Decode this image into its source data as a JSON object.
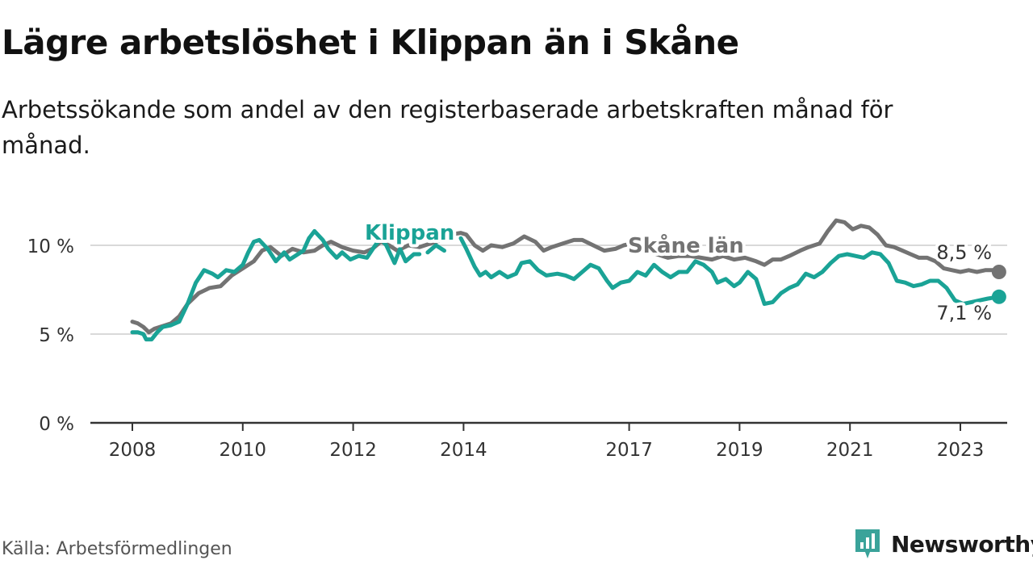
{
  "title": "Lägre arbetslöshet i Klippan än i Skåne",
  "subtitle": "Arbetssökande som andel av den registerbaserade arbetskraften månad för månad.",
  "source": "Källa: Arbetsförmedlingen",
  "brand": {
    "name": "Newsworthy",
    "icon": "newsworthy-logo-icon",
    "color": "#3aa39a"
  },
  "colors": {
    "klippan": "#1aa396",
    "skane": "#737373",
    "grid": "#d9d9d9",
    "axis": "#333333"
  },
  "chart_data": {
    "type": "line",
    "title": "Lägre arbetslöshet i Klippan än i Skåne",
    "xlabel": "",
    "ylabel": "",
    "xlim": [
      2007.85,
      2023.8
    ],
    "ylim": [
      0,
      11.5
    ],
    "x_ticks": [
      2008,
      2010,
      2012,
      2014,
      2017,
      2019,
      2021,
      2023
    ],
    "y_ticks": [
      0,
      5,
      10
    ],
    "y_tick_labels": [
      "0 %",
      "5 %",
      "10 %"
    ],
    "grid": true,
    "series": [
      {
        "name": "Skåne län",
        "label": "Skåne län",
        "color": "#737373",
        "end_label": "8,5 %",
        "end_value": 8.5,
        "points": [
          [
            2008.0,
            5.7
          ],
          [
            2008.1,
            5.6
          ],
          [
            2008.2,
            5.4
          ],
          [
            2008.3,
            5.1
          ],
          [
            2008.4,
            5.3
          ],
          [
            2008.6,
            5.5
          ],
          [
            2008.7,
            5.6
          ],
          [
            2008.85,
            6.0
          ],
          [
            2009.0,
            6.7
          ],
          [
            2009.2,
            7.3
          ],
          [
            2009.4,
            7.6
          ],
          [
            2009.6,
            7.7
          ],
          [
            2009.8,
            8.3
          ],
          [
            2010.0,
            8.7
          ],
          [
            2010.2,
            9.1
          ],
          [
            2010.35,
            9.7
          ],
          [
            2010.5,
            9.9
          ],
          [
            2010.7,
            9.4
          ],
          [
            2010.9,
            9.8
          ],
          [
            2011.1,
            9.6
          ],
          [
            2011.3,
            9.7
          ],
          [
            2011.45,
            10.0
          ],
          [
            2011.6,
            10.2
          ],
          [
            2011.8,
            9.9
          ],
          [
            2012.0,
            9.7
          ],
          [
            2012.2,
            9.6
          ],
          [
            2012.35,
            9.8
          ],
          [
            2012.5,
            10.2
          ],
          [
            2012.65,
            10.0
          ],
          [
            2012.8,
            9.7
          ],
          [
            2013.0,
            10.0
          ],
          [
            2013.2,
            9.9
          ],
          [
            2013.4,
            10.1
          ],
          [
            2013.6,
            10.3
          ],
          [
            2013.75,
            10.6
          ],
          [
            2013.95,
            10.7
          ],
          [
            2014.05,
            10.6
          ],
          [
            2014.2,
            10.0
          ],
          [
            2014.35,
            9.7
          ],
          [
            2014.5,
            10.0
          ],
          [
            2014.7,
            9.9
          ],
          [
            2014.9,
            10.1
          ],
          [
            2015.1,
            10.5
          ],
          [
            2015.3,
            10.2
          ],
          [
            2015.45,
            9.7
          ],
          [
            2015.6,
            9.9
          ],
          [
            2015.8,
            10.1
          ],
          [
            2016.0,
            10.3
          ],
          [
            2016.15,
            10.3
          ],
          [
            2016.35,
            10.0
          ],
          [
            2016.55,
            9.7
          ],
          [
            2016.75,
            9.8
          ],
          [
            2016.9,
            10.0
          ],
          [
            2017.05,
            10.1
          ],
          [
            2017.3,
            9.7
          ],
          [
            2017.5,
            9.5
          ],
          [
            2017.7,
            9.3
          ],
          [
            2017.9,
            9.4
          ],
          [
            2018.1,
            9.4
          ],
          [
            2018.3,
            9.3
          ],
          [
            2018.5,
            9.2
          ],
          [
            2018.7,
            9.4
          ],
          [
            2018.9,
            9.2
          ],
          [
            2019.1,
            9.3
          ],
          [
            2019.3,
            9.1
          ],
          [
            2019.45,
            8.9
          ],
          [
            2019.6,
            9.2
          ],
          [
            2019.75,
            9.2
          ],
          [
            2019.9,
            9.4
          ],
          [
            2020.1,
            9.7
          ],
          [
            2020.25,
            9.9
          ],
          [
            2020.45,
            10.1
          ],
          [
            2020.6,
            10.8
          ],
          [
            2020.75,
            11.4
          ],
          [
            2020.9,
            11.3
          ],
          [
            2021.05,
            10.9
          ],
          [
            2021.2,
            11.1
          ],
          [
            2021.35,
            11.0
          ],
          [
            2021.5,
            10.6
          ],
          [
            2021.65,
            10.0
          ],
          [
            2021.8,
            9.9
          ],
          [
            2021.95,
            9.7
          ],
          [
            2022.1,
            9.5
          ],
          [
            2022.25,
            9.3
          ],
          [
            2022.4,
            9.3
          ],
          [
            2022.55,
            9.1
          ],
          [
            2022.7,
            8.7
          ],
          [
            2022.85,
            8.6
          ],
          [
            2023.0,
            8.5
          ],
          [
            2023.15,
            8.6
          ],
          [
            2023.3,
            8.5
          ],
          [
            2023.45,
            8.6
          ],
          [
            2023.6,
            8.6
          ],
          [
            2023.7,
            8.5
          ]
        ]
      },
      {
        "name": "Klippan",
        "label": "Klippan",
        "color": "#1aa396",
        "end_label": "7,1 %",
        "end_value": 7.1,
        "segments": [
          [
            [
              2008.0,
              5.1
            ],
            [
              2008.1,
              5.1
            ],
            [
              2008.2,
              5.0
            ],
            [
              2008.25,
              4.7
            ],
            [
              2008.35,
              4.7
            ],
            [
              2008.45,
              5.1
            ],
            [
              2008.55,
              5.4
            ],
            [
              2008.7,
              5.5
            ],
            [
              2008.85,
              5.7
            ],
            [
              2009.0,
              6.7
            ],
            [
              2009.15,
              7.9
            ],
            [
              2009.3,
              8.6
            ],
            [
              2009.45,
              8.4
            ],
            [
              2009.55,
              8.2
            ],
            [
              2009.7,
              8.6
            ],
            [
              2009.85,
              8.5
            ],
            [
              2010.0,
              8.9
            ],
            [
              2010.1,
              9.6
            ],
            [
              2010.2,
              10.2
            ],
            [
              2010.3,
              10.3
            ],
            [
              2010.45,
              9.8
            ],
            [
              2010.6,
              9.1
            ],
            [
              2010.75,
              9.6
            ],
            [
              2010.85,
              9.2
            ],
            [
              2011.0,
              9.5
            ],
            [
              2011.1,
              9.7
            ],
            [
              2011.2,
              10.4
            ],
            [
              2011.3,
              10.8
            ],
            [
              2011.45,
              10.3
            ],
            [
              2011.55,
              9.8
            ],
            [
              2011.7,
              9.3
            ],
            [
              2011.8,
              9.6
            ],
            [
              2011.95,
              9.2
            ],
            [
              2012.1,
              9.4
            ],
            [
              2012.25,
              9.3
            ],
            [
              2012.4,
              10.0
            ],
            [
              2012.5,
              10.4
            ],
            [
              2012.6,
              10.0
            ],
            [
              2012.75,
              9.0
            ],
            [
              2012.85,
              9.8
            ],
            [
              2012.95,
              9.1
            ],
            [
              2013.1,
              9.5
            ],
            [
              2013.2,
              9.5
            ]
          ],
          [
            [
              2013.35,
              9.6
            ],
            [
              2013.5,
              10.0
            ],
            [
              2013.65,
              9.7
            ]
          ],
          [
            [
              2013.95,
              10.4
            ],
            [
              2014.05,
              9.8
            ],
            [
              2014.2,
              8.8
            ],
            [
              2014.3,
              8.3
            ],
            [
              2014.4,
              8.5
            ],
            [
              2014.5,
              8.2
            ],
            [
              2014.65,
              8.5
            ],
            [
              2014.8,
              8.2
            ],
            [
              2014.95,
              8.4
            ],
            [
              2015.05,
              9.0
            ],
            [
              2015.2,
              9.1
            ],
            [
              2015.35,
              8.6
            ],
            [
              2015.5,
              8.3
            ],
            [
              2015.7,
              8.4
            ],
            [
              2015.85,
              8.3
            ],
            [
              2016.0,
              8.1
            ],
            [
              2016.15,
              8.5
            ],
            [
              2016.3,
              8.9
            ],
            [
              2016.45,
              8.7
            ],
            [
              2016.6,
              8.0
            ],
            [
              2016.7,
              7.6
            ],
            [
              2016.85,
              7.9
            ],
            [
              2017.0,
              8.0
            ],
            [
              2017.15,
              8.5
            ],
            [
              2017.3,
              8.3
            ],
            [
              2017.45,
              8.9
            ],
            [
              2017.6,
              8.5
            ],
            [
              2017.75,
              8.2
            ],
            [
              2017.9,
              8.5
            ],
            [
              2018.05,
              8.5
            ],
            [
              2018.2,
              9.1
            ],
            [
              2018.35,
              8.9
            ],
            [
              2018.5,
              8.5
            ],
            [
              2018.6,
              7.9
            ],
            [
              2018.75,
              8.1
            ],
            [
              2018.9,
              7.7
            ],
            [
              2019.0,
              7.9
            ],
            [
              2019.15,
              8.5
            ],
            [
              2019.3,
              8.1
            ],
            [
              2019.45,
              6.7
            ],
            [
              2019.6,
              6.8
            ],
            [
              2019.75,
              7.3
            ],
            [
              2019.9,
              7.6
            ],
            [
              2020.05,
              7.8
            ],
            [
              2020.2,
              8.4
            ],
            [
              2020.35,
              8.2
            ],
            [
              2020.5,
              8.5
            ],
            [
              2020.65,
              9.0
            ],
            [
              2020.8,
              9.4
            ],
            [
              2020.95,
              9.5
            ],
            [
              2021.1,
              9.4
            ],
            [
              2021.25,
              9.3
            ],
            [
              2021.4,
              9.6
            ],
            [
              2021.55,
              9.5
            ],
            [
              2021.7,
              9.0
            ],
            [
              2021.85,
              8.0
            ],
            [
              2022.0,
              7.9
            ],
            [
              2022.15,
              7.7
            ],
            [
              2022.3,
              7.8
            ],
            [
              2022.45,
              8.0
            ],
            [
              2022.6,
              8.0
            ],
            [
              2022.75,
              7.6
            ],
            [
              2022.9,
              6.9
            ],
            [
              2023.05,
              6.7
            ],
            [
              2023.2,
              6.8
            ],
            [
              2023.35,
              6.9
            ],
            [
              2023.5,
              7.0
            ],
            [
              2023.7,
              7.1
            ]
          ]
        ]
      }
    ]
  }
}
